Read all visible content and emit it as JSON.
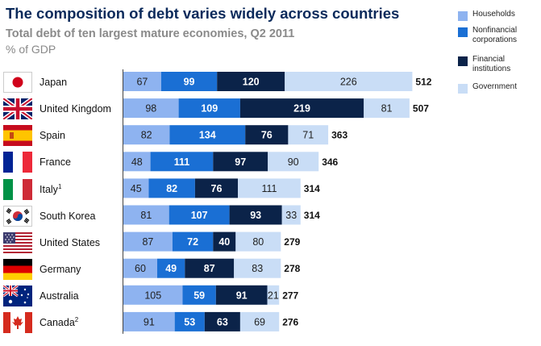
{
  "title": "The composition of debt varies widely across countries",
  "subtitle": "Total debt of ten largest mature economies, Q2 2011",
  "unit_label": "% of GDP",
  "legend": [
    {
      "name": "Households",
      "color": "#8eb3f0"
    },
    {
      "name": "Nonfinancial corporations",
      "color": "#1a6fd4"
    },
    {
      "name": "Financial institutions",
      "color": "#0b2349"
    },
    {
      "name": "Government",
      "color": "#c9ddf6"
    }
  ],
  "rows": [
    {
      "country": "Japan",
      "note": "",
      "flag": "japan-flag-icon"
    },
    {
      "country": "United Kingdom",
      "note": "",
      "flag": "united-kingdom-flag-icon"
    },
    {
      "country": "Spain",
      "note": "",
      "flag": "spain-flag-icon"
    },
    {
      "country": "France",
      "note": "",
      "flag": "france-flag-icon"
    },
    {
      "country": "Italy",
      "note": "1",
      "flag": "italy-flag-icon"
    },
    {
      "country": "South Korea",
      "note": "",
      "flag": "south-korea-flag-icon"
    },
    {
      "country": "United States",
      "note": "",
      "flag": "united-states-flag-icon"
    },
    {
      "country": "Germany",
      "note": "",
      "flag": "germany-flag-icon"
    },
    {
      "country": "Australia",
      "note": "",
      "flag": "australia-flag-icon"
    },
    {
      "country": "Canada",
      "note": "2",
      "flag": "canada-flag-icon"
    }
  ],
  "chart_data": {
    "type": "bar",
    "orientation": "horizontal",
    "stacked": true,
    "title": "The composition of debt varies widely across countries",
    "subtitle": "Total debt of ten largest mature economies, Q2 2011",
    "unit": "% of GDP",
    "categories": [
      "Japan",
      "United Kingdom",
      "Spain",
      "France",
      "Italy",
      "South Korea",
      "United States",
      "Germany",
      "Australia",
      "Canada"
    ],
    "series": [
      {
        "name": "Households",
        "values": [
          67,
          98,
          82,
          48,
          45,
          81,
          87,
          60,
          105,
          91
        ]
      },
      {
        "name": "Nonfinancial corporations",
        "values": [
          99,
          109,
          134,
          111,
          82,
          107,
          72,
          49,
          59,
          53
        ]
      },
      {
        "name": "Financial institutions",
        "values": [
          120,
          219,
          76,
          97,
          76,
          93,
          40,
          87,
          91,
          63
        ]
      },
      {
        "name": "Government",
        "values": [
          226,
          81,
          71,
          90,
          111,
          33,
          80,
          83,
          21,
          69
        ]
      }
    ],
    "totals": [
      512,
      507,
      363,
      346,
      314,
      314,
      279,
      278,
      277,
      276
    ],
    "legend_position": "top-right"
  }
}
